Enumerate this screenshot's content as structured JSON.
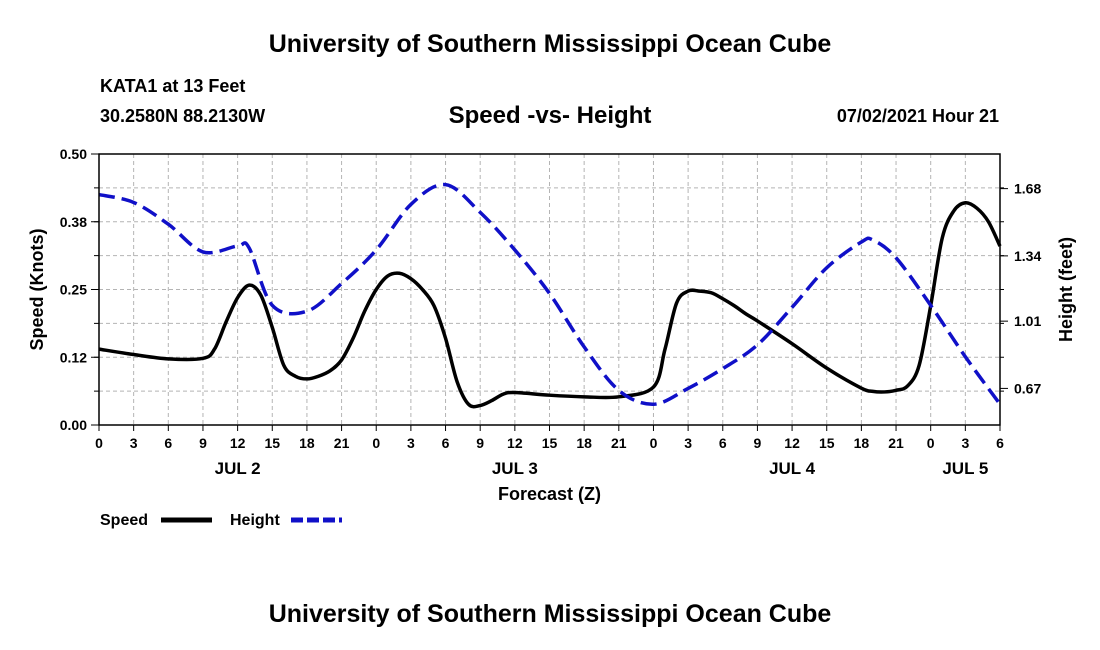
{
  "page": {
    "top_title": "University of Southern Mississippi Ocean Cube",
    "bottom_title": "University of Southern Mississippi Ocean Cube",
    "station": "KATA1 at 13 Feet",
    "coords": "30.2580N  88.2130W",
    "subtitle": "Speed -vs- Height",
    "datetime": "07/02/2021 Hour 21"
  },
  "colors": {
    "speed": "#000000",
    "height": "#1010c8",
    "grid": "#b4b4b4"
  },
  "chart_data": {
    "type": "line",
    "title": "Speed -vs- Height",
    "xlabel": "Forecast (Z)",
    "ylabel_left": "Speed (Knots)",
    "ylabel_right": "Height (feet)",
    "x_range": [
      0,
      78
    ],
    "x_tick_labels": [
      "0",
      "3",
      "6",
      "9",
      "12",
      "15",
      "18",
      "21",
      "0",
      "3",
      "6",
      "9",
      "12",
      "15",
      "18",
      "21",
      "0",
      "3",
      "6",
      "9",
      "12",
      "15",
      "18",
      "21",
      "0",
      "3",
      "6"
    ],
    "date_labels": [
      {
        "label": "JUL 2",
        "x": 12
      },
      {
        "label": "JUL 3",
        "x": 36
      },
      {
        "label": "JUL 4",
        "x": 60
      },
      {
        "label": "JUL 5",
        "x": 75
      }
    ],
    "y_left": {
      "range": [
        0,
        0.5
      ],
      "ticks": [
        "0.00",
        "0.12",
        "0.25",
        "0.38",
        "0.50"
      ],
      "tick_values": [
        0,
        0.125,
        0.25,
        0.375,
        0.5
      ]
    },
    "y_right": {
      "range": [
        0.485,
        1.855
      ],
      "ticks": [
        "0.67",
        "1.01",
        "1.34",
        "1.68"
      ],
      "tick_values": [
        0.67,
        1.01,
        1.34,
        1.68
      ]
    },
    "grid": true,
    "legend": {
      "position": "bottom-left",
      "entries": [
        "Speed",
        "Height"
      ]
    },
    "series": [
      {
        "name": "Speed",
        "axis": "left",
        "style": "solid",
        "x": [
          0,
          3,
          6,
          9,
          10,
          11,
          12,
          13,
          14,
          15,
          16,
          17,
          18,
          19,
          20,
          21,
          22,
          23,
          24,
          25,
          26,
          27,
          28,
          29,
          30,
          31,
          32,
          33,
          34,
          35,
          36,
          39,
          42,
          45,
          48,
          49,
          50,
          51,
          52,
          53,
          54,
          55,
          56,
          57,
          60,
          63,
          66,
          67,
          68,
          69,
          70,
          71,
          72,
          73,
          74,
          75,
          76,
          77,
          78
        ],
        "y": [
          0.14,
          0.13,
          0.122,
          0.123,
          0.14,
          0.19,
          0.235,
          0.258,
          0.24,
          0.18,
          0.11,
          0.09,
          0.085,
          0.09,
          0.1,
          0.12,
          0.16,
          0.21,
          0.25,
          0.275,
          0.28,
          0.27,
          0.25,
          0.22,
          0.16,
          0.08,
          0.038,
          0.036,
          0.045,
          0.057,
          0.06,
          0.055,
          0.052,
          0.052,
          0.07,
          0.14,
          0.225,
          0.247,
          0.247,
          0.244,
          0.233,
          0.22,
          0.205,
          0.192,
          0.15,
          0.105,
          0.068,
          0.062,
          0.061,
          0.064,
          0.072,
          0.11,
          0.22,
          0.345,
          0.395,
          0.41,
          0.4,
          0.375,
          0.33
        ]
      },
      {
        "name": "Height",
        "axis": "right",
        "style": "dashed",
        "x": [
          0,
          3,
          6,
          9,
          12,
          13,
          15,
          18,
          21,
          24,
          27,
          30,
          33,
          36,
          39,
          42,
          45,
          48,
          51,
          54,
          57,
          60,
          63,
          66,
          67,
          69,
          72,
          75,
          78
        ],
        "y": [
          1.65,
          1.61,
          1.5,
          1.36,
          1.39,
          1.38,
          1.09,
          1.06,
          1.2,
          1.37,
          1.6,
          1.7,
          1.56,
          1.37,
          1.15,
          0.88,
          0.66,
          0.59,
          0.67,
          0.77,
          0.89,
          1.08,
          1.28,
          1.41,
          1.42,
          1.33,
          1.09,
          0.83,
          0.59
        ]
      }
    ]
  }
}
